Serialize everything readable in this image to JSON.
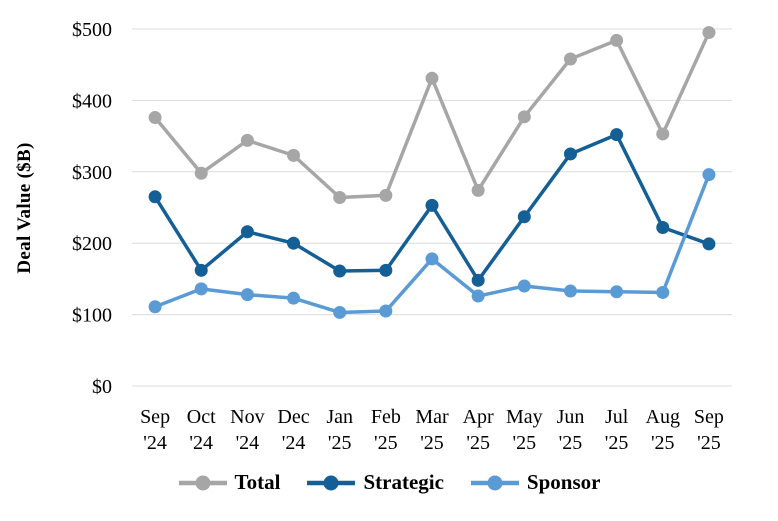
{
  "chart_data": {
    "type": "line",
    "title": "",
    "ylabel": "Deal Value ($B)",
    "xlabel": "",
    "ylim": [
      0,
      500
    ],
    "ytick_values": [
      0,
      100,
      200,
      300,
      400,
      500
    ],
    "ytick_labels": [
      "$0",
      "$100",
      "$200",
      "$300",
      "$400",
      "$500"
    ],
    "grid": "horizontal",
    "grid_color": "#dcdcdc",
    "legend_position": "bottom",
    "categories": [
      {
        "month": "Sep",
        "year": "'24"
      },
      {
        "month": "Oct",
        "year": "'24"
      },
      {
        "month": "Nov",
        "year": "'24"
      },
      {
        "month": "Dec",
        "year": "'24"
      },
      {
        "month": "Jan",
        "year": "'25"
      },
      {
        "month": "Feb",
        "year": "'25"
      },
      {
        "month": "Mar",
        "year": "'25"
      },
      {
        "month": "Apr",
        "year": "'25"
      },
      {
        "month": "May",
        "year": "'25"
      },
      {
        "month": "Jun",
        "year": "'25"
      },
      {
        "month": "Jul",
        "year": "'25"
      },
      {
        "month": "Aug",
        "year": "'25"
      },
      {
        "month": "Sep",
        "year": "'25"
      }
    ],
    "series": [
      {
        "name": "Total",
        "color": "#a6a6a6",
        "values": [
          376,
          298,
          344,
          323,
          264,
          267,
          431,
          274,
          377,
          458,
          484,
          353,
          495
        ]
      },
      {
        "name": "Strategic",
        "color": "#145f96",
        "values": [
          265,
          162,
          216,
          200,
          161,
          162,
          253,
          148,
          237,
          325,
          352,
          222,
          199
        ]
      },
      {
        "name": "Sponsor",
        "color": "#5b9bd5",
        "values": [
          111,
          136,
          128,
          123,
          103,
          105,
          178,
          126,
          140,
          133,
          132,
          131,
          296
        ]
      }
    ]
  }
}
